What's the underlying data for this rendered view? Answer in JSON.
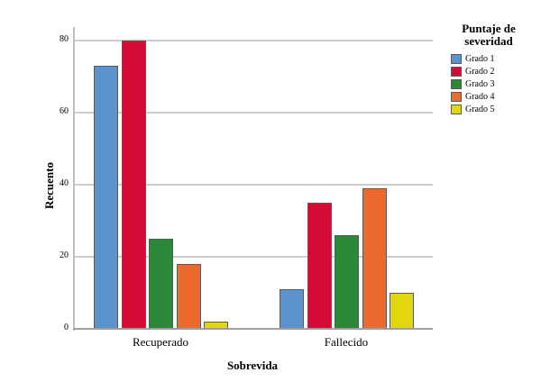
{
  "chart_data": {
    "type": "bar",
    "title": "",
    "xlabel": "Sobrevida",
    "ylabel": "Recuento",
    "ylim": [
      0,
      80
    ],
    "yticks": [
      0,
      20,
      40,
      60,
      80
    ],
    "grid": true,
    "legend_position": "right",
    "legend_title": "Puntaje de severidad",
    "categories": [
      "Recuperado",
      "Fallecido"
    ],
    "series": [
      {
        "name": "Grado 1",
        "color": "#5b93cf",
        "values": [
          73,
          11
        ]
      },
      {
        "name": "Grado 2",
        "color": "#d50b35",
        "values": [
          80,
          35
        ]
      },
      {
        "name": "Grado 3",
        "color": "#2a8838",
        "values": [
          25,
          26
        ]
      },
      {
        "name": "Grado 4",
        "color": "#ec6a2e",
        "values": [
          18,
          39
        ]
      },
      {
        "name": "Grado 5",
        "color": "#e3d60e",
        "values": [
          2,
          10
        ]
      }
    ]
  },
  "labels": {
    "xlabel": "Sobrevida",
    "ylabel": "Recuento",
    "legend_title_line1": "Puntaje de",
    "legend_title_line2": "severidad",
    "categories": [
      "Recuperado",
      "Fallecido"
    ],
    "yticks": [
      "0",
      "20",
      "40",
      "60",
      "80"
    ],
    "legend": [
      "Grado 1",
      "Grado 2",
      "Grado 3",
      "Grado 4",
      "Grado 5"
    ]
  }
}
